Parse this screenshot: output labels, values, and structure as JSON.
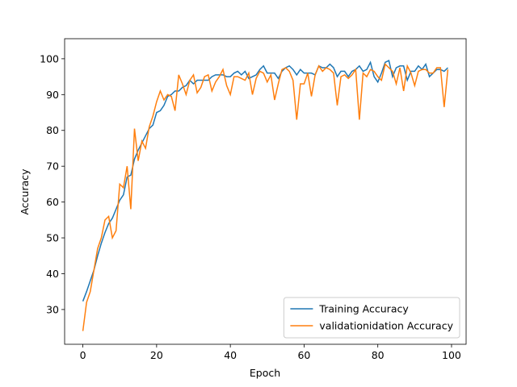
{
  "chart_data": {
    "type": "line",
    "xlabel": "Epoch",
    "ylabel": "Accuracy",
    "x": [
      0,
      1,
      2,
      3,
      4,
      5,
      6,
      7,
      8,
      9,
      10,
      11,
      12,
      13,
      14,
      15,
      16,
      17,
      18,
      19,
      20,
      21,
      22,
      23,
      24,
      25,
      26,
      27,
      28,
      29,
      30,
      31,
      32,
      33,
      34,
      35,
      36,
      37,
      38,
      39,
      40,
      41,
      42,
      43,
      44,
      45,
      46,
      47,
      48,
      49,
      50,
      51,
      52,
      53,
      54,
      55,
      56,
      57,
      58,
      59,
      60,
      61,
      62,
      63,
      64,
      65,
      66,
      67,
      68,
      69,
      70,
      71,
      72,
      73,
      74,
      75,
      76,
      77,
      78,
      79,
      80,
      81,
      82,
      83,
      84,
      85,
      86,
      87,
      88,
      89,
      90,
      91,
      92,
      93,
      94,
      95,
      96,
      97,
      98,
      99
    ],
    "series": [
      {
        "name": "Training Accuracy",
        "color": "#1f77b4",
        "values": [
          32.3,
          35,
          38,
          41,
          45,
          48.5,
          51.5,
          54,
          55.5,
          58,
          60.5,
          62,
          67,
          67.5,
          72,
          74.5,
          76.5,
          78.5,
          80.5,
          81.5,
          85,
          85.5,
          87,
          89.5,
          90,
          91,
          91,
          92,
          92.5,
          94,
          93,
          94,
          94,
          94,
          94,
          95,
          95.5,
          95.5,
          95.5,
          95,
          95,
          96,
          96.5,
          95.5,
          96.5,
          94.5,
          95,
          95.5,
          97,
          98,
          96,
          96,
          96,
          94.5,
          96.5,
          97.5,
          98,
          97,
          95.5,
          97,
          96,
          96,
          96,
          95.5,
          98,
          97.5,
          97.5,
          98.5,
          97.5,
          95,
          96.5,
          96.5,
          95,
          96.5,
          97,
          98,
          96.5,
          97,
          99,
          95,
          93.5,
          96,
          99,
          99.5,
          95,
          97.5,
          98,
          98,
          94,
          96.5,
          96.5,
          98,
          97,
          98.5,
          95,
          96,
          97,
          97,
          96.5,
          97.5
        ]
      },
      {
        "name": "validationidation Accuracy",
        "color": "#ff7f0e",
        "values": [
          24,
          32,
          35,
          41,
          47,
          50,
          55,
          56,
          50,
          52,
          65,
          64,
          70,
          58,
          80.5,
          71.5,
          77,
          75,
          81,
          84,
          88,
          91,
          88.5,
          90,
          89.5,
          85.5,
          95.5,
          93,
          90,
          94,
          95.5,
          90.5,
          92,
          95,
          95.5,
          91,
          93.5,
          95,
          97,
          92.5,
          90,
          95,
          95,
          94.5,
          94,
          96,
          90,
          94.5,
          96.5,
          96,
          93.5,
          95.5,
          88.5,
          93,
          97,
          97.5,
          96.5,
          94,
          83,
          93,
          93,
          96,
          89.5,
          95.5,
          98,
          96.5,
          97.5,
          97,
          96,
          87,
          95,
          95.5,
          94.5,
          95.5,
          97,
          83,
          96,
          95,
          97,
          96.5,
          95,
          94,
          98.5,
          97.5,
          96.5,
          93,
          97.5,
          91,
          98,
          96,
          92.5,
          96.5,
          97,
          97,
          96,
          96,
          97.5,
          97.5,
          86.5,
          97
        ]
      }
    ],
    "xlim": [
      -4.95,
      103.95
    ],
    "ylim": [
      20.3,
      105.6
    ],
    "xticks": [
      0,
      20,
      40,
      60,
      80,
      100
    ],
    "yticks": [
      30,
      40,
      50,
      60,
      70,
      80,
      90,
      100
    ],
    "legend": "lower right"
  }
}
